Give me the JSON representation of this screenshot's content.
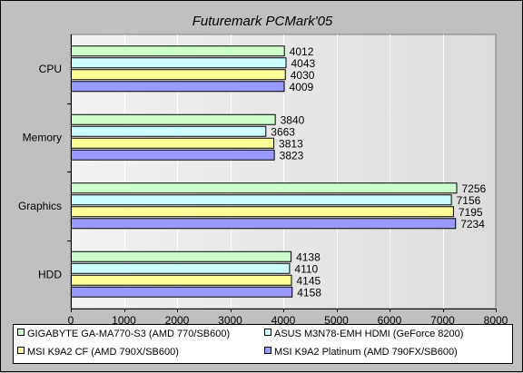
{
  "chart_data": {
    "type": "bar",
    "orientation": "horizontal",
    "title": "Futuremark PCMark'05",
    "xlabel": "",
    "ylabel": "",
    "categories": [
      "CPU",
      "Memory",
      "Graphics",
      "HDD"
    ],
    "series": [
      {
        "name": "GIGABYTE GA-MA770-S3 (AMD 770/SB600)",
        "color": "#ccffcc",
        "values": [
          4012,
          3840,
          7256,
          4138
        ]
      },
      {
        "name": "ASUS M3N78-EMH HDMI (GeForce 8200)",
        "color": "#ccffff",
        "values": [
          4043,
          3663,
          7156,
          4110
        ]
      },
      {
        "name": "MSI K9A2 CF (AMD 790X/SB600)",
        "color": "#ffff99",
        "values": [
          4030,
          3813,
          7195,
          4145
        ]
      },
      {
        "name": "MSI K9A2 Platinum (AMD 790FX/SB600)",
        "color": "#9999ff",
        "values": [
          4009,
          3823,
          7234,
          4158
        ]
      }
    ],
    "xlim": [
      0,
      8000
    ],
    "xticks": [
      0,
      1000,
      2000,
      3000,
      4000,
      5000,
      6000,
      7000,
      8000
    ],
    "grid": true,
    "legend_position": "bottom"
  }
}
